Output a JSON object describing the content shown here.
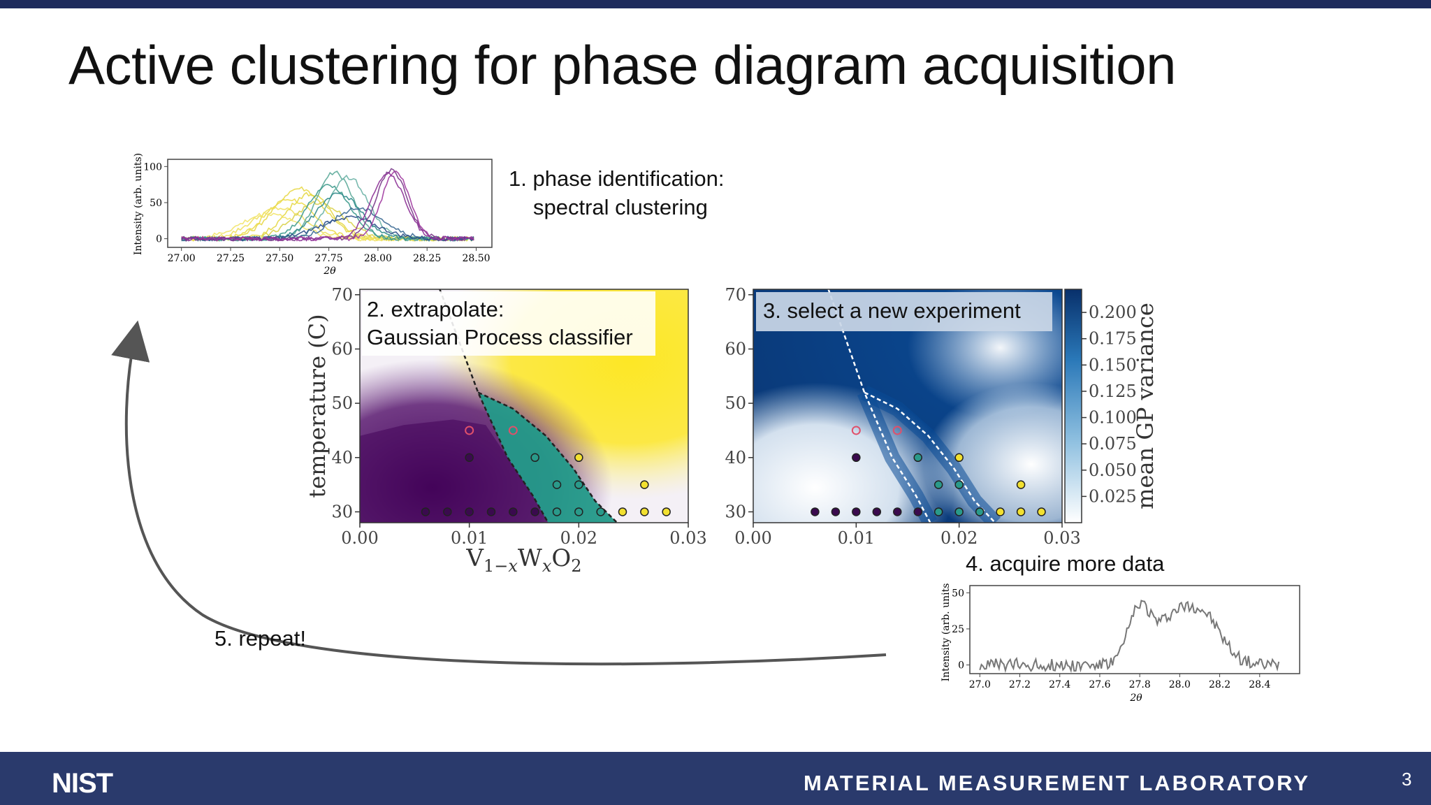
{
  "slide": {
    "title": "Active clustering for phase diagram acquisition",
    "page_number": "3",
    "footer_logo": "NIST",
    "footer_lab": "MATERIAL MEASUREMENT LABORATORY"
  },
  "steps": {
    "step1_line1": "1. phase identification:",
    "step1_line2": "spectral clustering",
    "step2_line1": "2. extrapolate:",
    "step2_line2": "Gaussian Process classifier",
    "step3": "3. select a new experiment",
    "step4": "4. acquire more data",
    "step5": "5. repeat!"
  },
  "chart_data": [
    {
      "type": "line",
      "panel": "spectra",
      "xlabel": "2θ",
      "ylabel": "Intensity (arb. units)",
      "xlim": [
        26.93,
        28.58
      ],
      "ylim": [
        -12,
        110
      ],
      "x_ticks": [
        "27.00",
        "27.25",
        "27.50",
        "27.75",
        "28.00",
        "28.25",
        "28.50"
      ],
      "y_ticks": [
        "0",
        "50",
        "100"
      ],
      "series": [
        {
          "color": "#ecdc4a",
          "center": 27.55,
          "width": 0.17,
          "height": 55
        },
        {
          "color": "#e8d84a",
          "center": 27.6,
          "width": 0.18,
          "height": 70
        },
        {
          "color": "#f0e060",
          "center": 27.5,
          "width": 0.19,
          "height": 42
        },
        {
          "color": "#e6d846",
          "center": 27.65,
          "width": 0.16,
          "height": 62
        },
        {
          "color": "#d9d24a",
          "center": 27.7,
          "width": 0.18,
          "height": 50
        },
        {
          "color": "#f2e46a",
          "center": 27.45,
          "width": 0.2,
          "height": 35
        },
        {
          "color": "#5aa898",
          "center": 27.78,
          "width": 0.13,
          "height": 92
        },
        {
          "color": "#3d9a8c",
          "center": 27.75,
          "width": 0.15,
          "height": 75
        },
        {
          "color": "#6cb2a6",
          "center": 27.85,
          "width": 0.14,
          "height": 85
        },
        {
          "color": "#2f8a8a",
          "center": 27.8,
          "width": 0.16,
          "height": 62
        },
        {
          "color": "#3c6a94",
          "center": 27.9,
          "width": 0.18,
          "height": 42
        },
        {
          "color": "#2c4f88",
          "center": 27.85,
          "width": 0.2,
          "height": 30
        },
        {
          "color": "#7a3a8a",
          "center": 28.07,
          "width": 0.11,
          "height": 95
        },
        {
          "color": "#a03aa0",
          "center": 28.09,
          "width": 0.1,
          "height": 92
        },
        {
          "color": "#8c3096",
          "center": 28.05,
          "width": 0.12,
          "height": 90
        }
      ]
    },
    {
      "type": "heatmap",
      "panel": "gp-classifier",
      "xlabel": "V1−xWxO2",
      "ylabel": "temperature (C)",
      "xlim": [
        0.0,
        0.03
      ],
      "ylim": [
        28,
        71
      ],
      "x_ticks": [
        "0.00",
        "0.01",
        "0.02",
        "0.03"
      ],
      "y_ticks": [
        "30",
        "40",
        "50",
        "60",
        "70"
      ],
      "boundary_1": [
        [
          0.0073,
          71
        ],
        [
          0.0108,
          52
        ],
        [
          0.0135,
          40
        ],
        [
          0.0158,
          33
        ],
        [
          0.0172,
          28
        ]
      ],
      "boundary_2": [
        [
          0.0108,
          52
        ],
        [
          0.014,
          49
        ],
        [
          0.017,
          44
        ],
        [
          0.0195,
          38
        ],
        [
          0.0215,
          32
        ],
        [
          0.0235,
          28
        ]
      ],
      "points": [
        {
          "x": 0.006,
          "y": 30,
          "phase": "a"
        },
        {
          "x": 0.008,
          "y": 30,
          "phase": "a"
        },
        {
          "x": 0.01,
          "y": 30,
          "phase": "a"
        },
        {
          "x": 0.012,
          "y": 30,
          "phase": "a"
        },
        {
          "x": 0.014,
          "y": 30,
          "phase": "a"
        },
        {
          "x": 0.016,
          "y": 30,
          "phase": "a"
        },
        {
          "x": 0.01,
          "y": 40,
          "phase": "a"
        },
        {
          "x": 0.018,
          "y": 30,
          "phase": "b"
        },
        {
          "x": 0.02,
          "y": 30,
          "phase": "b"
        },
        {
          "x": 0.022,
          "y": 30,
          "phase": "b"
        },
        {
          "x": 0.018,
          "y": 35,
          "phase": "b"
        },
        {
          "x": 0.02,
          "y": 35,
          "phase": "b"
        },
        {
          "x": 0.016,
          "y": 40,
          "phase": "b"
        },
        {
          "x": 0.024,
          "y": 30,
          "phase": "c"
        },
        {
          "x": 0.026,
          "y": 30,
          "phase": "c"
        },
        {
          "x": 0.028,
          "y": 30,
          "phase": "c"
        },
        {
          "x": 0.026,
          "y": 35,
          "phase": "c"
        },
        {
          "x": 0.02,
          "y": 40,
          "phase": "c"
        },
        {
          "x": 0.01,
          "y": 45,
          "phase": "candidate"
        },
        {
          "x": 0.014,
          "y": 45,
          "phase": "candidate"
        }
      ]
    },
    {
      "type": "heatmap",
      "panel": "gp-variance",
      "xlabel": "",
      "ylabel": "",
      "xlim": [
        0.0,
        0.03
      ],
      "ylim": [
        28,
        71
      ],
      "x_ticks": [
        "0.00",
        "0.01",
        "0.02",
        "0.03"
      ],
      "y_ticks": [
        "30",
        "40",
        "50",
        "60",
        "70"
      ],
      "colorbar_label": "mean GP variance",
      "colorbar_ticks": [
        "0.200",
        "0.175",
        "0.150",
        "0.125",
        "0.100",
        "0.075",
        "0.050",
        "0.025"
      ],
      "colorbar_range": [
        0.0,
        0.222
      ]
    },
    {
      "type": "line",
      "panel": "new-spectrum",
      "xlabel": "2θ",
      "ylabel": "Intensity (arb. units",
      "xlim": [
        26.95,
        28.6
      ],
      "ylim": [
        -6,
        55
      ],
      "x_ticks": [
        "27.0",
        "27.2",
        "27.4",
        "27.6",
        "27.8",
        "28.0",
        "28.2",
        "28.4"
      ],
      "y_ticks": [
        "0",
        "25",
        "50"
      ],
      "series": [
        {
          "color": "#777777",
          "peaks": [
            {
              "center": 27.8,
              "width": 0.08,
              "height": 40
            },
            {
              "center": 28.1,
              "width": 0.14,
              "height": 37
            },
            {
              "center": 27.95,
              "width": 0.1,
              "height": 22
            }
          ]
        }
      ]
    }
  ],
  "colors": {
    "navy": "#1e2b5c",
    "footer": "#2a3a6c",
    "purple_phase": "#4b1058",
    "teal_phase": "#2a9a8a",
    "yellow_phase": "#fde725",
    "candidate": "#e0506a",
    "variance_dark": "#0b4a8f"
  },
  "icons": {
    "arrow": "curved-arrow-icon"
  }
}
